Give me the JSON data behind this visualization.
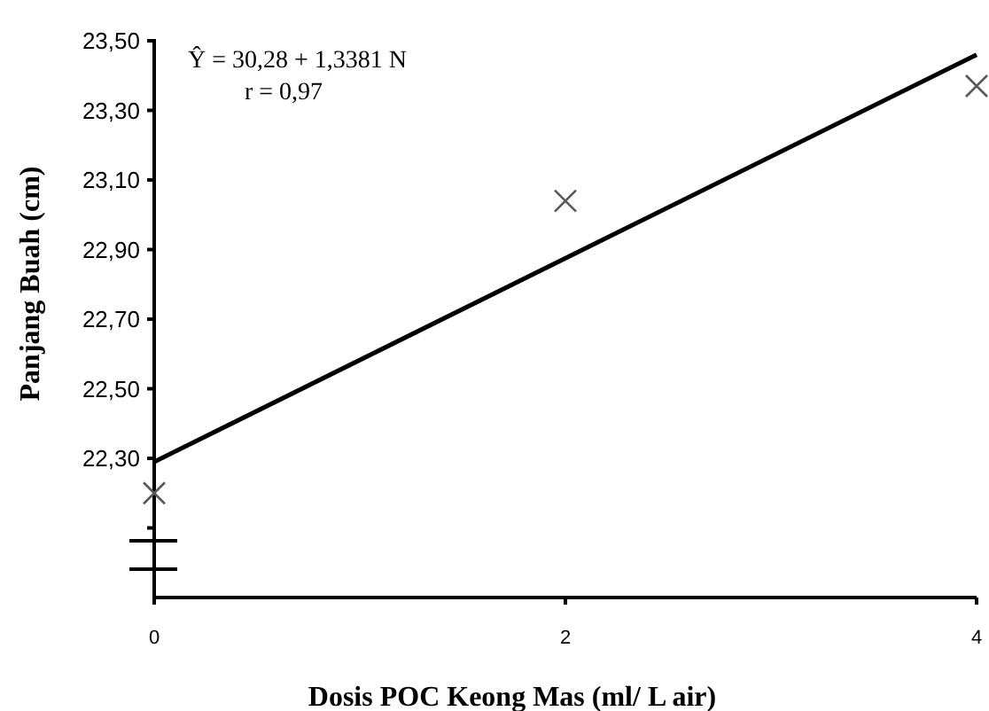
{
  "chart_data": {
    "type": "scatter",
    "xlabel": "Dosis POC Keong Mas (ml/ L air)",
    "ylabel": "Panjang Buah (cm)",
    "annotations": [
      "Ŷ = 30,28 + 1,3381 N",
      "r = 0,97"
    ],
    "xlim": [
      0,
      4
    ],
    "xticks": [
      0,
      2,
      4
    ],
    "ylim": [
      21.9,
      23.5
    ],
    "yticks": [
      {
        "value": 22.1,
        "label": null
      },
      {
        "value": 22.3,
        "label": "22,30"
      },
      {
        "value": 22.5,
        "label": "22,50"
      },
      {
        "value": 22.7,
        "label": "22,70"
      },
      {
        "value": 22.9,
        "label": "22,90"
      },
      {
        "value": 23.1,
        "label": "23,10"
      },
      {
        "value": 23.3,
        "label": "23,30"
      },
      {
        "value": 23.5,
        "label": "23,50"
      }
    ],
    "grid": false,
    "series": [
      {
        "color": "#595959",
        "marker": "cross",
        "x": [
          0,
          2,
          4
        ],
        "values": [
          22.2,
          23.04,
          23.37
        ]
      },
      {
        "type": "line",
        "color": "#000000",
        "line_style": "solid",
        "marker": "none",
        "x": [
          0,
          4
        ],
        "values": [
          22.29,
          23.46
        ]
      }
    ]
  }
}
